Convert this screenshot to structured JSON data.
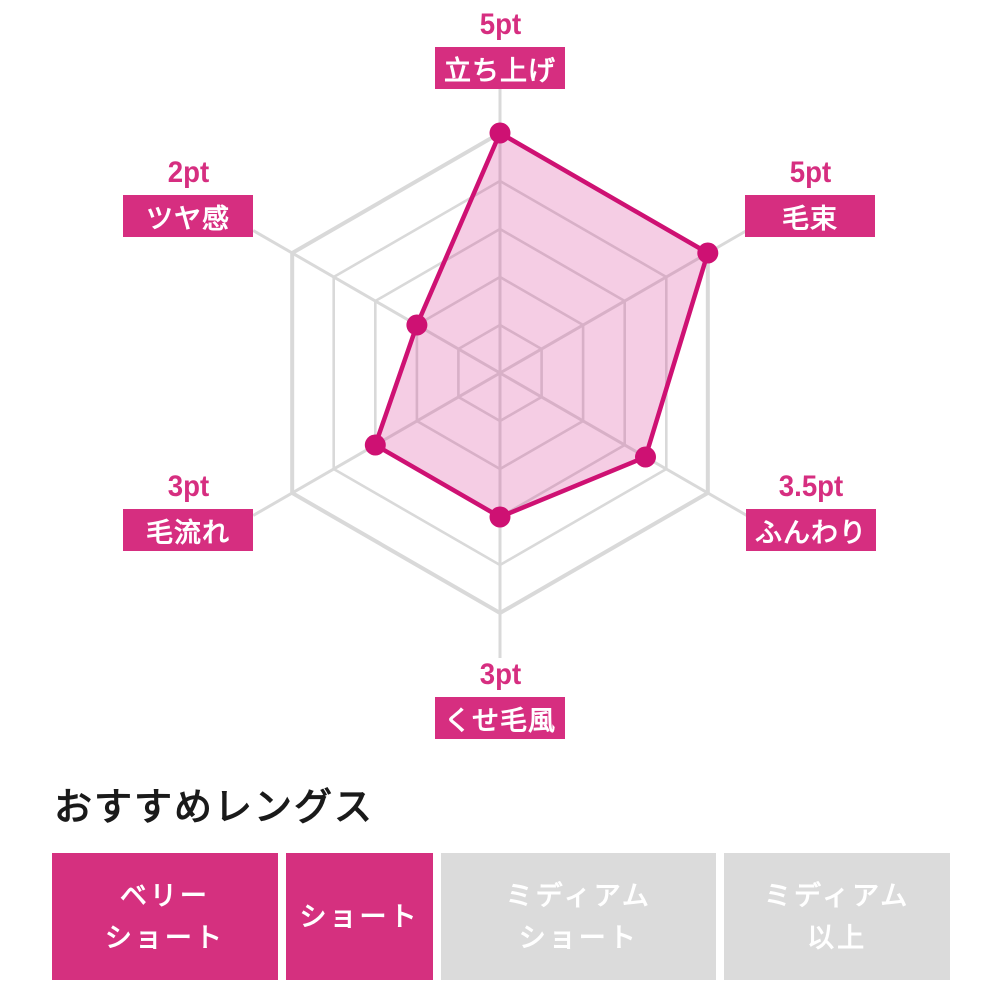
{
  "chart_data": {
    "type": "radar",
    "title": "",
    "max": 5,
    "ring_count": 5,
    "grid_shape": "hexagon",
    "axes": [
      {
        "label": "立ち上げ",
        "pt": "5pt",
        "value": 5
      },
      {
        "label": "毛束",
        "pt": "5pt",
        "value": 5
      },
      {
        "label": "ふんわり",
        "pt": "3.5pt",
        "value": 3.5
      },
      {
        "label": "くせ毛風",
        "pt": "3pt",
        "value": 3
      },
      {
        "label": "毛流れ",
        "pt": "3pt",
        "value": 3
      },
      {
        "label": "ツヤ感",
        "pt": "2pt",
        "value": 2
      }
    ],
    "colors": {
      "accent_pink": "#D62E80",
      "series_stroke": "#CE1173",
      "series_fill": "rgba(213,48,141,0.24)",
      "point_fill": "#CE1173",
      "grid_gray": "#D9D9D9",
      "label_text_on_pink": "#FFFFFF",
      "pt_text": "#D62E80"
    }
  },
  "recommend": {
    "heading": "おすすめレングス",
    "options": [
      {
        "lines": [
          "ベリー",
          "ショート"
        ],
        "active": true
      },
      {
        "lines": [
          "ショート"
        ],
        "active": true
      },
      {
        "lines": [
          "ミディアム",
          "ショート"
        ],
        "active": false
      },
      {
        "lines": [
          "ミディアム",
          "以上"
        ],
        "active": false
      }
    ],
    "colors": {
      "active_bg": "#D5307F",
      "inactive_bg": "#DBDBDB",
      "text": "#FFFFFF",
      "heading_text": "#1A1A1A"
    }
  }
}
